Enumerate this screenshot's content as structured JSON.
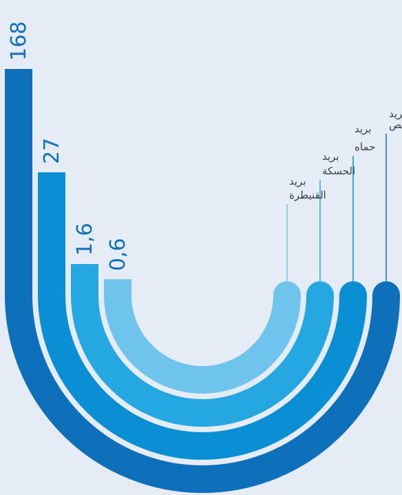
{
  "chart_data": {
    "type": "bar",
    "style": "radial-u-bars",
    "series": [
      {
        "category": "بريد حمص",
        "label_lines": [
          "بريد",
          "حمص"
        ],
        "value": 168,
        "value_label": "168",
        "color": "#0e6fba"
      },
      {
        "category": "بريد حماه",
        "label_lines": [
          "بريد",
          "حماه"
        ],
        "value": 27,
        "value_label": "27",
        "color": "#0a8fd4"
      },
      {
        "category": "بريد الحسكة",
        "label_lines": [
          "بريد",
          "الحسكة"
        ],
        "value": 1.6,
        "value_label": "1,6",
        "color": "#25a8e2"
      },
      {
        "category": "بريد القنيطرة",
        "label_lines": [
          "بريد",
          "القنيطرة"
        ],
        "value": 0.6,
        "value_label": "0,6",
        "color": "#6fc4ee"
      }
    ],
    "colors": {
      "background": "#e6ecf6",
      "value_text": "#0e6fba",
      "label_text": "#3a3f45"
    }
  }
}
